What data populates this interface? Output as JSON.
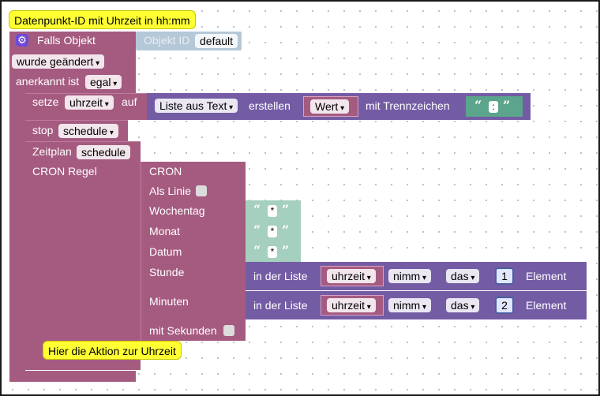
{
  "colors": {
    "event_block": "#a55b80",
    "list_block": "#745ca5",
    "text_block": "#a5cfbf",
    "comment": "#ffff33"
  },
  "comments": {
    "top": "Datenpunkt-ID mit Uhrzeit in hh:mm",
    "bottom": "Hier die Aktion zur Uhrzeit"
  },
  "trigger": {
    "label": "Falls Objekt",
    "objekt_id_label": "Objekt ID",
    "objekt_id_value": "default",
    "change_value": "wurde geändert",
    "ack_label": "anerkannt ist",
    "ack_value": "egal"
  },
  "set_block": {
    "label": "setze",
    "variable": "uhrzeit",
    "to_label": "auf",
    "list_block": {
      "mode": "Liste aus Text",
      "create_label": "erstellen",
      "text_var": "Wert",
      "delim_label": "mit Trennzeichen",
      "delimiter": ":"
    }
  },
  "stop_block": {
    "label": "stop",
    "value": "schedule"
  },
  "schedule_block": {
    "label": "Zeitplan",
    "name": "schedule",
    "cron_label": "CRON Regel"
  },
  "cron_block": {
    "title": "CRON",
    "as_line": "Als Linie",
    "weekday": {
      "label": "Wochentag",
      "value": "*"
    },
    "month": {
      "label": "Monat",
      "value": "*"
    },
    "date": {
      "label": "Datum",
      "value": "*"
    },
    "hour": {
      "label": "Stunde",
      "in_list": "in der Liste",
      "var": "uhrzeit",
      "op": "nimm",
      "pos": "das",
      "index": "1",
      "element": "Element"
    },
    "minutes": {
      "label": "Minuten",
      "in_list": "in der Liste",
      "var": "uhrzeit",
      "op": "nimm",
      "pos": "das",
      "index": "2",
      "element": "Element"
    },
    "seconds": "mit Sekunden"
  },
  "quote_open": "“",
  "quote_close": "”"
}
